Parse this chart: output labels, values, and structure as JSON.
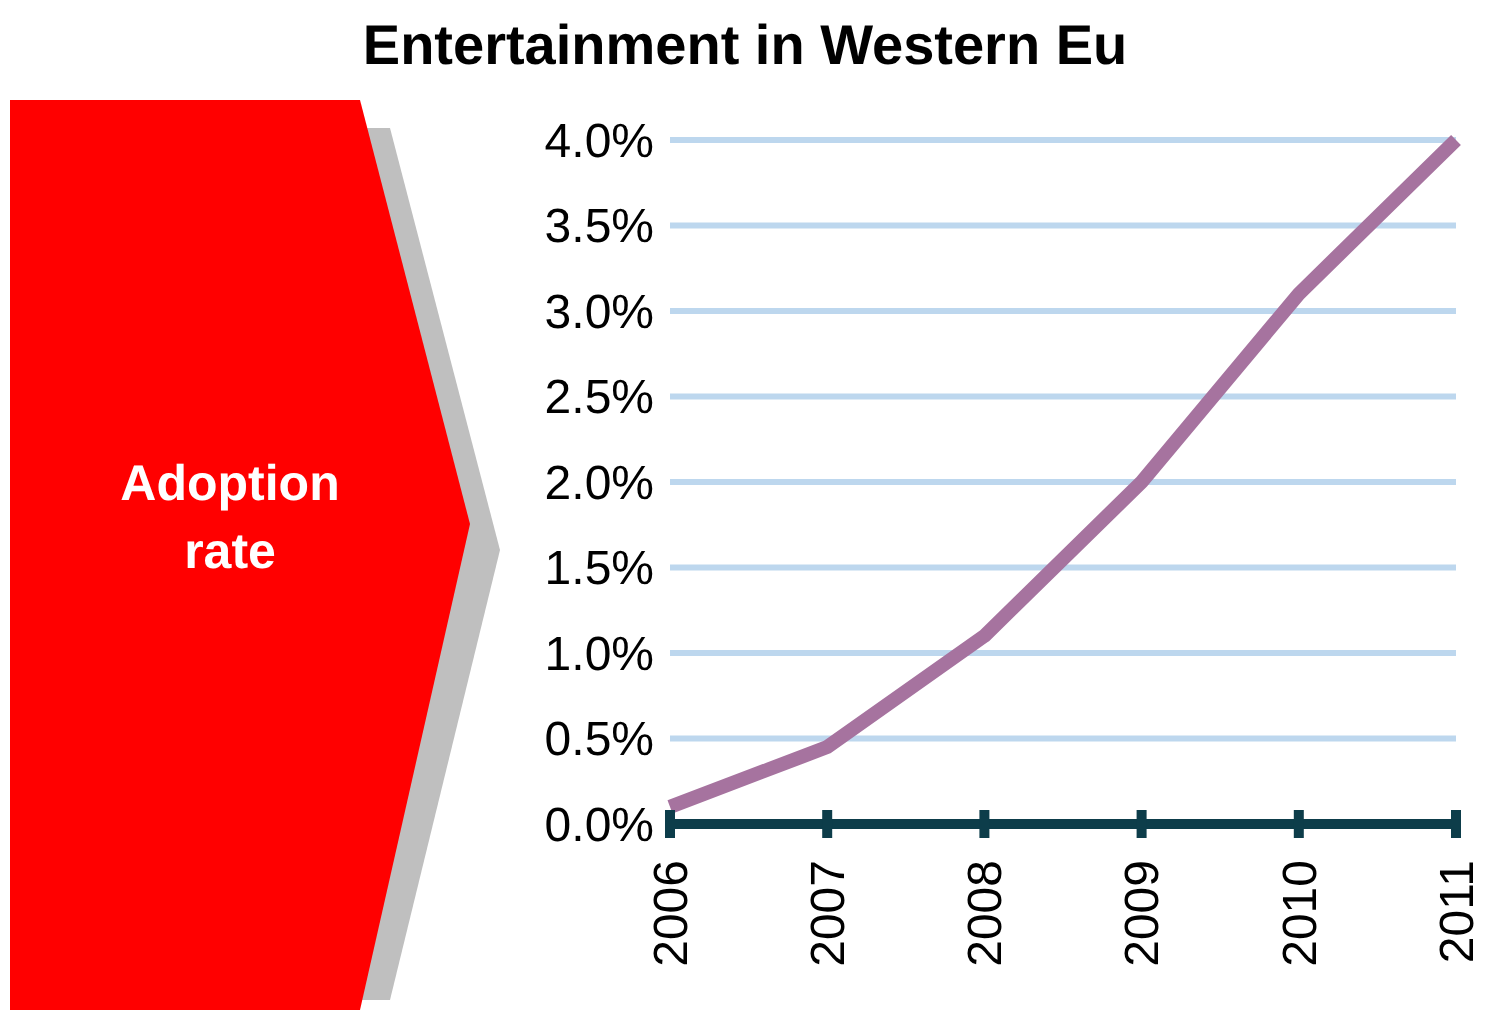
{
  "chart_data": {
    "type": "line",
    "title": "Entertainment in Western Eu",
    "ylabel": "Adoption rate",
    "categories": [
      "2006",
      "2007",
      "2008",
      "2009",
      "2010",
      "2011"
    ],
    "series": [
      {
        "color": "#a6739f",
        "values": [
          0.1,
          0.45,
          1.1,
          2.0,
          3.1,
          4.0
        ]
      }
    ],
    "ylim": [
      0,
      4
    ],
    "yticks": [
      {
        "value": 0,
        "label": "0.0%"
      },
      {
        "value": 0.5,
        "label": "0.5%"
      },
      {
        "value": 1,
        "label": "1.0%"
      },
      {
        "value": 1.5,
        "label": "1.5%"
      },
      {
        "value": 2,
        "label": "2.0%"
      },
      {
        "value": 2.5,
        "label": "2.5%"
      },
      {
        "value": 3,
        "label": "3.0%"
      },
      {
        "value": 3.5,
        "label": "3.5%"
      },
      {
        "value": 4,
        "label": "4.0%"
      }
    ],
    "grid": "y",
    "marker": "none",
    "line_style": "solid"
  }
}
